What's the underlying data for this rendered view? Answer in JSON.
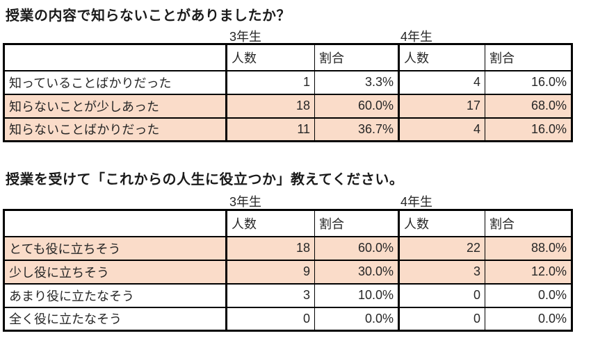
{
  "colors": {
    "background": "#ffffff",
    "highlight_row": "#fadcc9",
    "border": "#000000",
    "title_text": "#1a1a1a",
    "table_text": "#262626"
  },
  "tables": [
    {
      "title": "授業の内容で知らないことがありましたか？",
      "group_headers": [
        "3年生",
        "4年生"
      ],
      "col_headers": [
        "人数",
        "割合",
        "人数",
        "割合"
      ],
      "rows": [
        {
          "label": "知っていることばかりだった",
          "values": [
            "1",
            "3.3%",
            "4",
            "16.0%"
          ],
          "highlighted": false
        },
        {
          "label": "知らないことが少しあった",
          "values": [
            "18",
            "60.0%",
            "17",
            "68.0%"
          ],
          "highlighted": true
        },
        {
          "label": "知らないことばかりだった",
          "values": [
            "11",
            "36.7%",
            "4",
            "16.0%"
          ],
          "highlighted": true
        }
      ]
    },
    {
      "title": "授業を受けて「これからの人生に役立つか」教えてください。",
      "group_headers": [
        "3年生",
        "4年生"
      ],
      "col_headers": [
        "人数",
        "割合",
        "人数",
        "割合"
      ],
      "rows": [
        {
          "label": "とても役に立ちそう",
          "values": [
            "18",
            "60.0%",
            "22",
            "88.0%"
          ],
          "highlighted": true
        },
        {
          "label": "少し役に立ちそう",
          "values": [
            "9",
            "30.0%",
            "3",
            "12.0%"
          ],
          "highlighted": true
        },
        {
          "label": "あまり役に立たなそう",
          "values": [
            "3",
            "10.0%",
            "0",
            "0.0%"
          ],
          "highlighted": false
        },
        {
          "label": "全く役に立たなそう",
          "values": [
            "0",
            "0.0%",
            "0",
            "0.0%"
          ],
          "highlighted": false
        }
      ]
    }
  ]
}
